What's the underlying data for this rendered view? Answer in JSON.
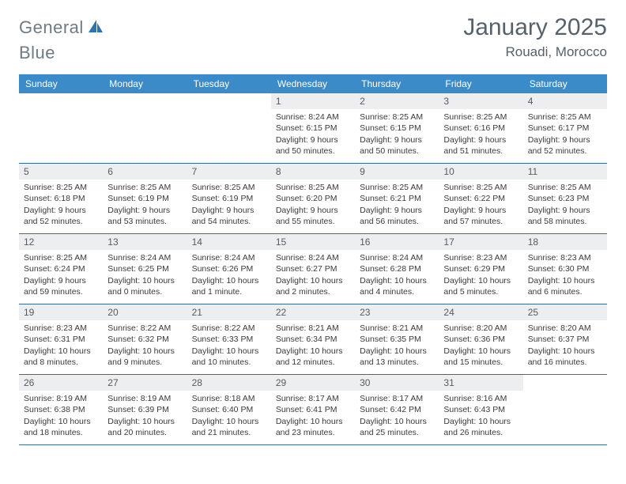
{
  "brand": {
    "name_a": "General",
    "name_b": "Blue"
  },
  "title": "January 2025",
  "location": "Rouadi, Morocco",
  "colors": {
    "header_bg": "#3b8bc8",
    "header_text": "#ffffff",
    "daynum_bg": "#eceeef",
    "daynum_text": "#555b61",
    "body_text": "#3a3a3a",
    "rule": "#3b6a94",
    "title_text": "#56616b",
    "logo_text": "#6f7b84",
    "logo_accent": "#2f73ad"
  },
  "typography": {
    "month_title_pt": 30,
    "location_pt": 17,
    "dow_pt": 12,
    "daynum_pt": 12,
    "body_pt": 10.5,
    "logo_pt": 22
  },
  "dow": [
    "Sunday",
    "Monday",
    "Tuesday",
    "Wednesday",
    "Thursday",
    "Friday",
    "Saturday"
  ],
  "weeks": [
    [
      {
        "n": "",
        "lines": []
      },
      {
        "n": "",
        "lines": []
      },
      {
        "n": "",
        "lines": []
      },
      {
        "n": "1",
        "lines": [
          "Sunrise: 8:24 AM",
          "Sunset: 6:15 PM",
          "Daylight: 9 hours and 50 minutes."
        ]
      },
      {
        "n": "2",
        "lines": [
          "Sunrise: 8:25 AM",
          "Sunset: 6:15 PM",
          "Daylight: 9 hours and 50 minutes."
        ]
      },
      {
        "n": "3",
        "lines": [
          "Sunrise: 8:25 AM",
          "Sunset: 6:16 PM",
          "Daylight: 9 hours and 51 minutes."
        ]
      },
      {
        "n": "4",
        "lines": [
          "Sunrise: 8:25 AM",
          "Sunset: 6:17 PM",
          "Daylight: 9 hours and 52 minutes."
        ]
      }
    ],
    [
      {
        "n": "5",
        "lines": [
          "Sunrise: 8:25 AM",
          "Sunset: 6:18 PM",
          "Daylight: 9 hours and 52 minutes."
        ]
      },
      {
        "n": "6",
        "lines": [
          "Sunrise: 8:25 AM",
          "Sunset: 6:19 PM",
          "Daylight: 9 hours and 53 minutes."
        ]
      },
      {
        "n": "7",
        "lines": [
          "Sunrise: 8:25 AM",
          "Sunset: 6:19 PM",
          "Daylight: 9 hours and 54 minutes."
        ]
      },
      {
        "n": "8",
        "lines": [
          "Sunrise: 8:25 AM",
          "Sunset: 6:20 PM",
          "Daylight: 9 hours and 55 minutes."
        ]
      },
      {
        "n": "9",
        "lines": [
          "Sunrise: 8:25 AM",
          "Sunset: 6:21 PM",
          "Daylight: 9 hours and 56 minutes."
        ]
      },
      {
        "n": "10",
        "lines": [
          "Sunrise: 8:25 AM",
          "Sunset: 6:22 PM",
          "Daylight: 9 hours and 57 minutes."
        ]
      },
      {
        "n": "11",
        "lines": [
          "Sunrise: 8:25 AM",
          "Sunset: 6:23 PM",
          "Daylight: 9 hours and 58 minutes."
        ]
      }
    ],
    [
      {
        "n": "12",
        "lines": [
          "Sunrise: 8:25 AM",
          "Sunset: 6:24 PM",
          "Daylight: 9 hours and 59 minutes."
        ]
      },
      {
        "n": "13",
        "lines": [
          "Sunrise: 8:24 AM",
          "Sunset: 6:25 PM",
          "Daylight: 10 hours and 0 minutes."
        ]
      },
      {
        "n": "14",
        "lines": [
          "Sunrise: 8:24 AM",
          "Sunset: 6:26 PM",
          "Daylight: 10 hours and 1 minute."
        ]
      },
      {
        "n": "15",
        "lines": [
          "Sunrise: 8:24 AM",
          "Sunset: 6:27 PM",
          "Daylight: 10 hours and 2 minutes."
        ]
      },
      {
        "n": "16",
        "lines": [
          "Sunrise: 8:24 AM",
          "Sunset: 6:28 PM",
          "Daylight: 10 hours and 4 minutes."
        ]
      },
      {
        "n": "17",
        "lines": [
          "Sunrise: 8:23 AM",
          "Sunset: 6:29 PM",
          "Daylight: 10 hours and 5 minutes."
        ]
      },
      {
        "n": "18",
        "lines": [
          "Sunrise: 8:23 AM",
          "Sunset: 6:30 PM",
          "Daylight: 10 hours and 6 minutes."
        ]
      }
    ],
    [
      {
        "n": "19",
        "lines": [
          "Sunrise: 8:23 AM",
          "Sunset: 6:31 PM",
          "Daylight: 10 hours and 8 minutes."
        ]
      },
      {
        "n": "20",
        "lines": [
          "Sunrise: 8:22 AM",
          "Sunset: 6:32 PM",
          "Daylight: 10 hours and 9 minutes."
        ]
      },
      {
        "n": "21",
        "lines": [
          "Sunrise: 8:22 AM",
          "Sunset: 6:33 PM",
          "Daylight: 10 hours and 10 minutes."
        ]
      },
      {
        "n": "22",
        "lines": [
          "Sunrise: 8:21 AM",
          "Sunset: 6:34 PM",
          "Daylight: 10 hours and 12 minutes."
        ]
      },
      {
        "n": "23",
        "lines": [
          "Sunrise: 8:21 AM",
          "Sunset: 6:35 PM",
          "Daylight: 10 hours and 13 minutes."
        ]
      },
      {
        "n": "24",
        "lines": [
          "Sunrise: 8:20 AM",
          "Sunset: 6:36 PM",
          "Daylight: 10 hours and 15 minutes."
        ]
      },
      {
        "n": "25",
        "lines": [
          "Sunrise: 8:20 AM",
          "Sunset: 6:37 PM",
          "Daylight: 10 hours and 16 minutes."
        ]
      }
    ],
    [
      {
        "n": "26",
        "lines": [
          "Sunrise: 8:19 AM",
          "Sunset: 6:38 PM",
          "Daylight: 10 hours and 18 minutes."
        ]
      },
      {
        "n": "27",
        "lines": [
          "Sunrise: 8:19 AM",
          "Sunset: 6:39 PM",
          "Daylight: 10 hours and 20 minutes."
        ]
      },
      {
        "n": "28",
        "lines": [
          "Sunrise: 8:18 AM",
          "Sunset: 6:40 PM",
          "Daylight: 10 hours and 21 minutes."
        ]
      },
      {
        "n": "29",
        "lines": [
          "Sunrise: 8:17 AM",
          "Sunset: 6:41 PM",
          "Daylight: 10 hours and 23 minutes."
        ]
      },
      {
        "n": "30",
        "lines": [
          "Sunrise: 8:17 AM",
          "Sunset: 6:42 PM",
          "Daylight: 10 hours and 25 minutes."
        ]
      },
      {
        "n": "31",
        "lines": [
          "Sunrise: 8:16 AM",
          "Sunset: 6:43 PM",
          "Daylight: 10 hours and 26 minutes."
        ]
      },
      {
        "n": "",
        "lines": []
      }
    ]
  ]
}
